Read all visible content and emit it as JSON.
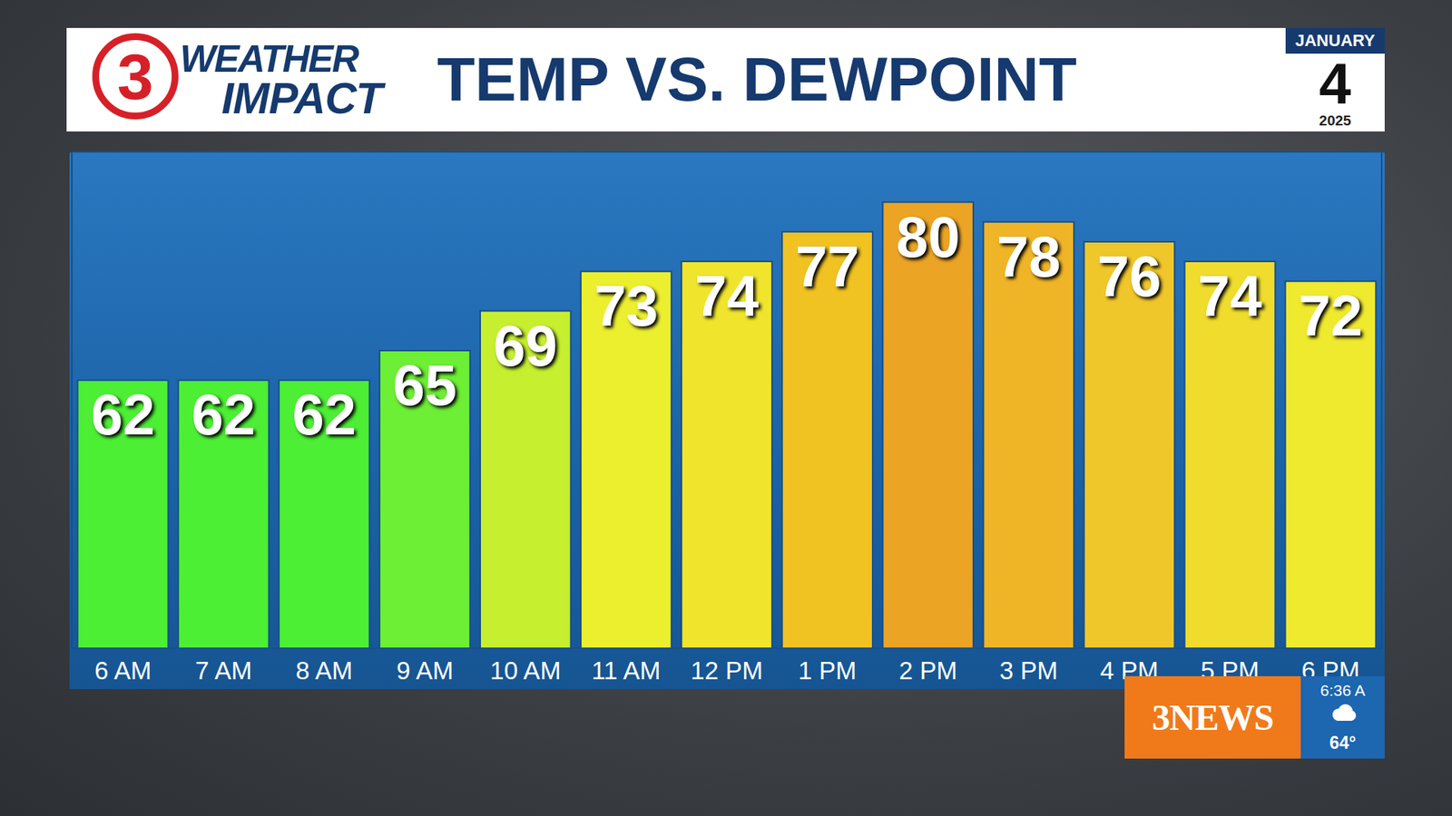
{
  "header": {
    "logo_number": "3",
    "logo_line1": "WEATHER",
    "logo_line2": "IMPACT",
    "month": "JANUARY",
    "day": "4",
    "year": "2025"
  },
  "bug": {
    "station": "3NEWS",
    "time": "6:36 A",
    "temperature": "64°"
  },
  "chart_data": {
    "type": "bar",
    "title": "TEMP VS. DEWPOINT",
    "categories": [
      "6 AM",
      "7 AM",
      "8 AM",
      "9 AM",
      "10 AM",
      "11 AM",
      "12 PM",
      "1 PM",
      "2 PM",
      "3 PM",
      "4 PM",
      "5 PM",
      "6 PM"
    ],
    "values": [
      62,
      62,
      62,
      65,
      69,
      73,
      74,
      77,
      80,
      78,
      76,
      74,
      72
    ],
    "colors": [
      "#4cef34",
      "#4cef34",
      "#4cef34",
      "#6cef34",
      "#c6ef30",
      "#ecef2e",
      "#f0e52c",
      "#f0c322",
      "#eba424",
      "#f0b526",
      "#f0c72a",
      "#f0dc2c",
      "#f0ea2e"
    ],
    "ylim": [
      35,
      85
    ],
    "yticks": [],
    "grid": false,
    "data_labels": true,
    "tick_labels": "x"
  }
}
